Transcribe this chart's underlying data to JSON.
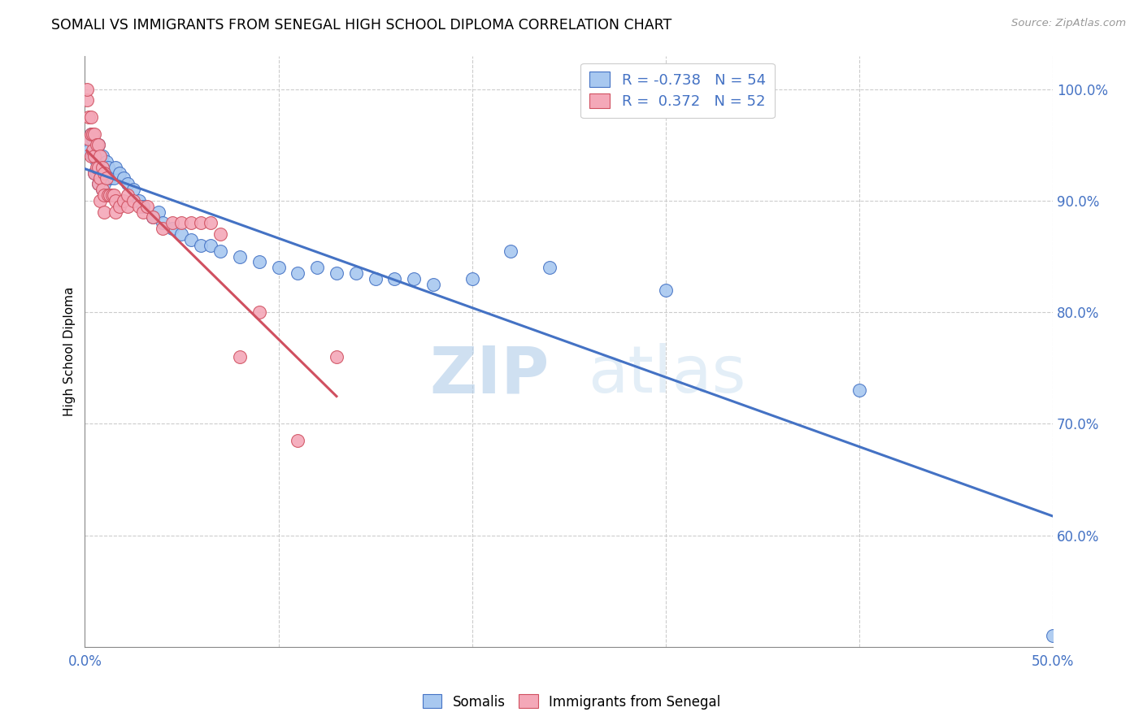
{
  "title": "SOMALI VS IMMIGRANTS FROM SENEGAL HIGH SCHOOL DIPLOMA CORRELATION CHART",
  "source": "Source: ZipAtlas.com",
  "ylabel": "High School Diploma",
  "xlim": [
    0.0,
    0.5
  ],
  "ylim": [
    0.5,
    1.03
  ],
  "blue_R": -0.738,
  "blue_N": 54,
  "pink_R": 0.372,
  "pink_N": 52,
  "blue_color": "#A8C8F0",
  "pink_color": "#F4A8B8",
  "blue_line_color": "#4472C4",
  "pink_line_color": "#D05060",
  "watermark_zip": "ZIP",
  "watermark_atlas": "atlas",
  "legend_label_blue": "Somalis",
  "legend_label_pink": "Immigrants from Senegal",
  "blue_scatter_x": [
    0.001,
    0.002,
    0.003,
    0.004,
    0.004,
    0.005,
    0.005,
    0.006,
    0.006,
    0.007,
    0.007,
    0.008,
    0.008,
    0.009,
    0.009,
    0.01,
    0.01,
    0.011,
    0.012,
    0.013,
    0.015,
    0.016,
    0.018,
    0.02,
    0.022,
    0.025,
    0.028,
    0.03,
    0.035,
    0.038,
    0.04,
    0.045,
    0.05,
    0.055,
    0.06,
    0.065,
    0.07,
    0.08,
    0.09,
    0.1,
    0.11,
    0.12,
    0.13,
    0.14,
    0.15,
    0.16,
    0.17,
    0.18,
    0.2,
    0.22,
    0.24,
    0.3,
    0.4,
    0.5
  ],
  "blue_scatter_y": [
    0.95,
    0.945,
    0.96,
    0.94,
    0.955,
    0.94,
    0.925,
    0.935,
    0.925,
    0.95,
    0.915,
    0.94,
    0.92,
    0.94,
    0.91,
    0.93,
    0.915,
    0.935,
    0.93,
    0.92,
    0.92,
    0.93,
    0.925,
    0.92,
    0.915,
    0.91,
    0.9,
    0.895,
    0.885,
    0.89,
    0.88,
    0.875,
    0.87,
    0.865,
    0.86,
    0.86,
    0.855,
    0.85,
    0.845,
    0.84,
    0.835,
    0.84,
    0.835,
    0.835,
    0.83,
    0.83,
    0.83,
    0.825,
    0.83,
    0.855,
    0.84,
    0.82,
    0.73,
    0.51
  ],
  "pink_scatter_x": [
    0.001,
    0.001,
    0.002,
    0.002,
    0.003,
    0.003,
    0.003,
    0.004,
    0.004,
    0.005,
    0.005,
    0.005,
    0.006,
    0.006,
    0.007,
    0.007,
    0.007,
    0.008,
    0.008,
    0.008,
    0.009,
    0.009,
    0.01,
    0.01,
    0.01,
    0.011,
    0.012,
    0.013,
    0.014,
    0.015,
    0.016,
    0.016,
    0.018,
    0.02,
    0.022,
    0.022,
    0.025,
    0.028,
    0.03,
    0.032,
    0.035,
    0.04,
    0.045,
    0.05,
    0.055,
    0.06,
    0.065,
    0.07,
    0.08,
    0.09,
    0.11,
    0.13
  ],
  "pink_scatter_y": [
    0.99,
    1.0,
    0.975,
    0.955,
    0.975,
    0.96,
    0.94,
    0.96,
    0.945,
    0.96,
    0.94,
    0.925,
    0.95,
    0.93,
    0.95,
    0.93,
    0.915,
    0.94,
    0.92,
    0.9,
    0.93,
    0.91,
    0.925,
    0.905,
    0.89,
    0.92,
    0.905,
    0.905,
    0.905,
    0.905,
    0.9,
    0.89,
    0.895,
    0.9,
    0.895,
    0.905,
    0.9,
    0.895,
    0.89,
    0.895,
    0.885,
    0.875,
    0.88,
    0.88,
    0.88,
    0.88,
    0.88,
    0.87,
    0.76,
    0.8,
    0.685,
    0.76
  ]
}
